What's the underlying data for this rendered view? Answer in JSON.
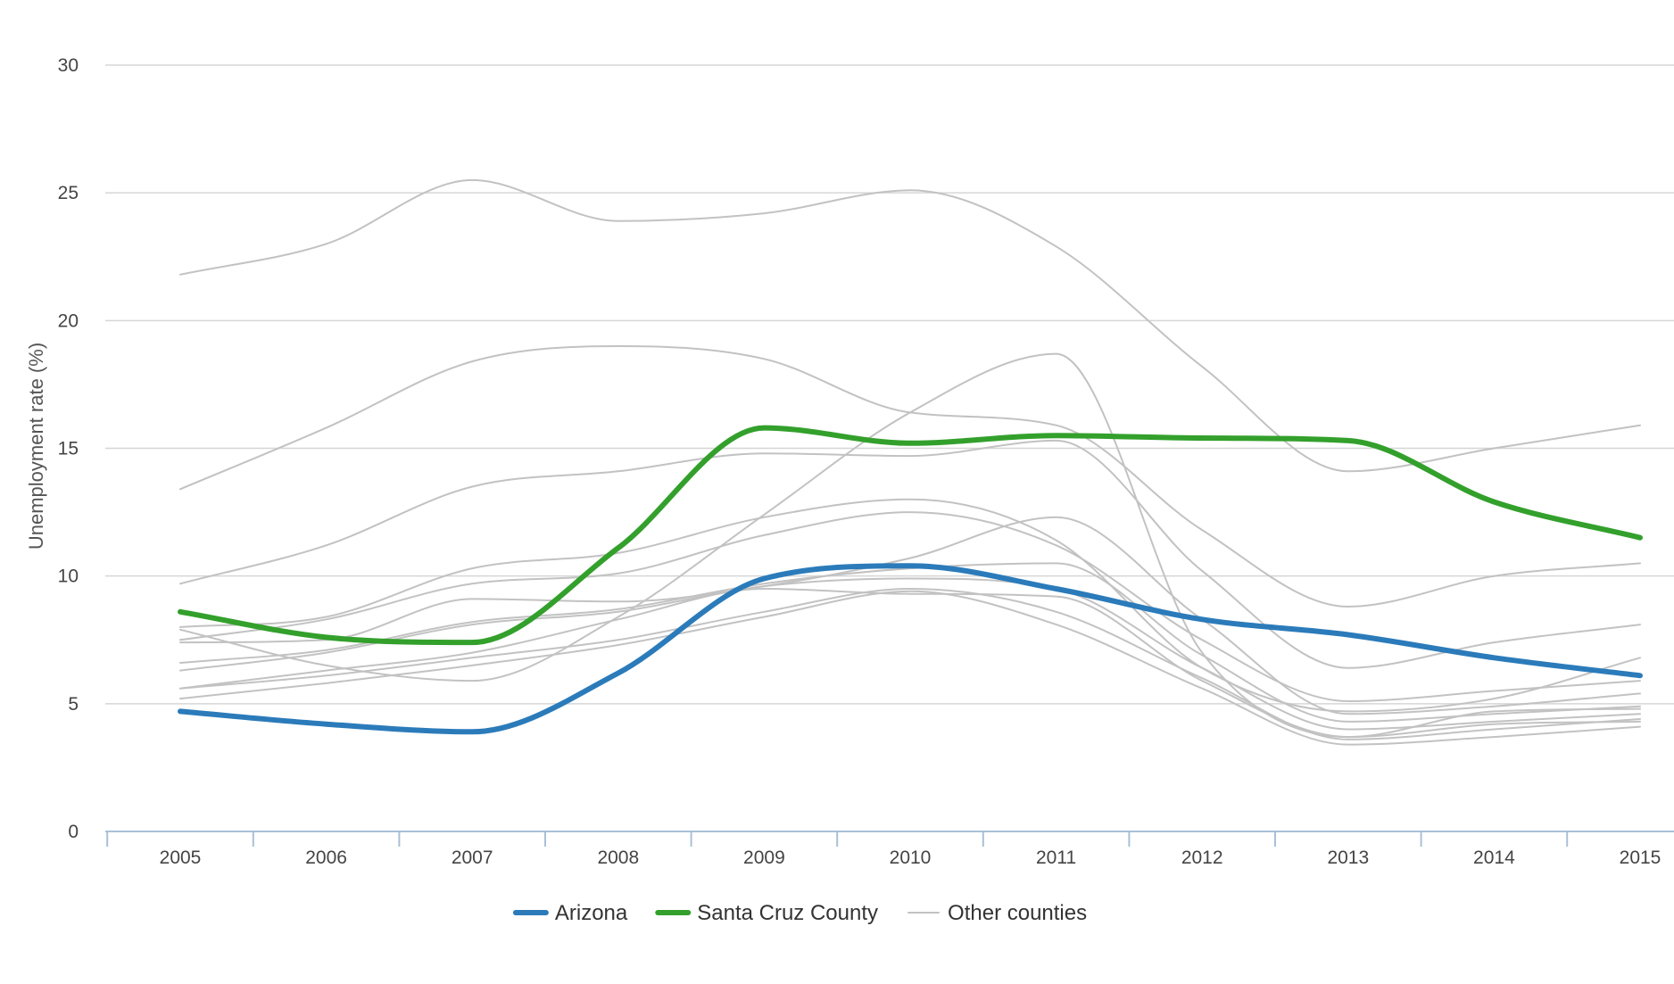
{
  "chart_data": {
    "type": "line",
    "title": "",
    "xlabel": "",
    "ylabel": "Unemployment rate (%)",
    "ylim": [
      0,
      30
    ],
    "y_ticks": [
      0,
      5,
      10,
      15,
      20,
      25,
      30
    ],
    "x": [
      "2005",
      "2006",
      "2007",
      "2008",
      "2009",
      "2010",
      "2011",
      "2012",
      "2013",
      "2014",
      "2015"
    ],
    "grid": true,
    "legend_position": "bottom-center",
    "legend": [
      {
        "label": "Arizona",
        "color": "#2b7bba"
      },
      {
        "label": "Santa Cruz County",
        "color": "#33a02c"
      },
      {
        "label": "Other counties",
        "color": "#c2c2c2"
      }
    ],
    "series": [
      {
        "name": "Arizona",
        "color": "#2b7bba",
        "values": [
          4.7,
          4.2,
          3.9,
          6.2,
          9.9,
          10.4,
          9.5,
          8.3,
          7.7,
          6.8,
          6.1
        ]
      },
      {
        "name": "Santa Cruz County",
        "color": "#33a02c",
        "values": [
          8.6,
          7.6,
          7.4,
          11.1,
          15.8,
          15.2,
          15.5,
          15.4,
          15.3,
          12.9,
          11.5
        ]
      },
      {
        "color": "#c2c2c2",
        "values": [
          21.8,
          23.0,
          25.5,
          23.9,
          24.2,
          25.1,
          22.9,
          18.2,
          14.1,
          15.0,
          15.9
        ]
      },
      {
        "color": "#c2c2c2",
        "values": [
          13.4,
          15.8,
          18.4,
          19.0,
          18.5,
          16.4,
          15.9,
          11.8,
          8.8,
          10.0,
          10.5
        ]
      },
      {
        "color": "#c2c2c2",
        "values": [
          9.7,
          11.2,
          13.5,
          14.1,
          14.8,
          14.7,
          15.3,
          10.2,
          6.4,
          7.4,
          8.1
        ]
      },
      {
        "color": "#c2c2c2",
        "values": [
          8.0,
          8.4,
          10.3,
          10.9,
          12.3,
          13.0,
          11.4,
          6.4,
          4.7,
          5.2,
          6.8
        ]
      },
      {
        "color": "#c2c2c2",
        "values": [
          7.5,
          8.3,
          9.7,
          10.1,
          11.6,
          12.5,
          11.2,
          7.5,
          5.1,
          5.5,
          5.9
        ]
      },
      {
        "color": "#c2c2c2",
        "values": [
          7.9,
          6.5,
          5.9,
          8.4,
          12.4,
          16.4,
          18.7,
          7.0,
          3.7,
          4.7,
          4.8
        ]
      },
      {
        "color": "#c2c2c2",
        "values": [
          7.4,
          7.5,
          9.1,
          9.0,
          9.6,
          10.7,
          12.3,
          8.3,
          4.6,
          4.9,
          5.4
        ]
      },
      {
        "color": "#c2c2c2",
        "values": [
          6.6,
          7.1,
          8.2,
          8.7,
          9.7,
          10.3,
          10.5,
          6.9,
          4.3,
          4.6,
          4.9
        ]
      },
      {
        "color": "#c2c2c2",
        "values": [
          6.3,
          7.0,
          8.1,
          8.6,
          9.6,
          9.9,
          9.5,
          6.4,
          4.0,
          4.3,
          4.6
        ]
      },
      {
        "color": "#c2c2c2",
        "values": [
          5.6,
          6.1,
          6.8,
          7.5,
          8.6,
          9.5,
          8.6,
          6.0,
          3.6,
          4.0,
          4.4
        ]
      },
      {
        "color": "#c2c2c2",
        "values": [
          5.2,
          5.8,
          6.5,
          7.3,
          8.4,
          9.4,
          8.1,
          5.6,
          3.4,
          3.7,
          4.1
        ]
      },
      {
        "color": "#c2c2c2",
        "values": [
          5.6,
          6.3,
          7.0,
          8.3,
          9.5,
          9.3,
          9.2,
          5.9,
          3.7,
          4.2,
          4.3
        ]
      }
    ]
  }
}
